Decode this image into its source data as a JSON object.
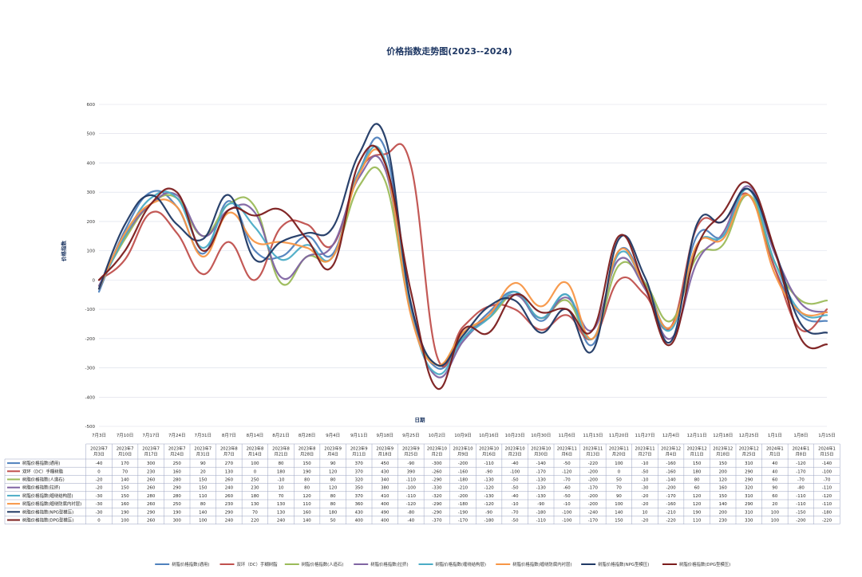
{
  "chart_data": {
    "type": "line",
    "title": "价格指数走势图(2023--2024)",
    "xlabel": "日期",
    "ylabel": "价格指数",
    "ylim": [
      -500,
      600
    ],
    "yticks": [
      -500,
      -400,
      -300,
      -200,
      -100,
      0,
      100,
      200,
      300,
      400,
      500,
      600
    ],
    "grid": true,
    "legend_position": "bottom",
    "x_tick_labels": [
      "7月3日",
      "7月10日",
      "7月17日",
      "7月24日",
      "7月31日",
      "8月7日",
      "8月14日",
      "8月21日",
      "8月28日",
      "9月4日",
      "9月11日",
      "9月18日",
      "9月25日",
      "10月2日",
      "10月9日",
      "10月16日",
      "10月23日",
      "10月30日",
      "11月6日",
      "11月13日",
      "11月20日",
      "11月27日",
      "12月4日",
      "12月11日",
      "12月18日",
      "12月25日",
      "1月1日",
      "1月8日",
      "1月15日"
    ],
    "categories": [
      "2023年7月3日",
      "2023年7月10日",
      "2023年7月17日",
      "2023年7月24日",
      "2023年7月31日",
      "2023年8月7日",
      "2023年8月14日",
      "2023年8月21日",
      "2023年8月28日",
      "2023年9月4日",
      "2023年9月11日",
      "2023年9月18日",
      "2023年9月25日",
      "2023年10月2日",
      "2023年10月9日",
      "2023年10月16日",
      "2023年10月23日",
      "2023年10月30日",
      "2023年11月6日",
      "2023年11月13日",
      "2023年11月20日",
      "2023年11月27日",
      "2023年12月4日",
      "2023年12月11日",
      "2023年12月18日",
      "2023年12月25日",
      "2024年1月1日",
      "2024年1月8日",
      "2024年1月15日"
    ],
    "series": [
      {
        "name": "树脂价格指数(通用)",
        "color": "#4f81bd",
        "values": [
          -40,
          170,
          300,
          250,
          90,
          270,
          100,
          80,
          150,
          90,
          370,
          450,
          -90,
          -300,
          -200,
          -110,
          -40,
          -140,
          -50,
          -220,
          100,
          -10,
          -160,
          150,
          150,
          310,
          40,
          -120,
          -140
        ]
      },
      {
        "name": "双环（DC）手糊树脂",
        "color": "#c0504d",
        "values": [
          0,
          70,
          230,
          160,
          20,
          130,
          0,
          180,
          190,
          120,
          370,
          430,
          390,
          -260,
          -160,
          -90,
          -100,
          -170,
          -120,
          -200,
          0,
          -50,
          -160,
          180,
          200,
          290,
          40,
          -170,
          -100
        ]
      },
      {
        "name": "树脂价格指数(人造石)",
        "color": "#9bbb59",
        "values": [
          -20,
          140,
          260,
          280,
          150,
          260,
          250,
          -10,
          80,
          80,
          320,
          340,
          -110,
          -290,
          -180,
          -130,
          -50,
          -130,
          -70,
          -200,
          50,
          -10,
          -140,
          80,
          120,
          290,
          60,
          -70,
          -70
        ]
      },
      {
        "name": "树脂价格指数(拉挤)",
        "color": "#8064a2",
        "values": [
          -20,
          150,
          260,
          290,
          150,
          240,
          230,
          10,
          80,
          120,
          350,
          380,
          -100,
          -330,
          -210,
          -120,
          -50,
          -130,
          -60,
          -170,
          70,
          -30,
          -200,
          60,
          160,
          320,
          90,
          -80,
          -110
        ]
      },
      {
        "name": "树脂价格指数(缠绕结构层)",
        "color": "#4bacc6",
        "values": [
          -30,
          150,
          280,
          280,
          110,
          260,
          180,
          70,
          120,
          80,
          370,
          410,
          -110,
          -320,
          -200,
          -130,
          -40,
          -130,
          -50,
          -200,
          90,
          -20,
          -170,
          120,
          150,
          310,
          60,
          -110,
          -120
        ]
      },
      {
        "name": "树脂价格指数(缠绕防腐内衬层)",
        "color": "#f79646",
        "values": [
          -30,
          160,
          260,
          250,
          80,
          230,
          130,
          130,
          110,
          80,
          360,
          400,
          -120,
          -290,
          -180,
          -120,
          -10,
          -90,
          -10,
          -200,
          100,
          -20,
          -160,
          120,
          140,
          290,
          20,
          -110,
          -110
        ]
      },
      {
        "name": "树脂价格指数(NPG型模压)",
        "color": "#1f3864",
        "values": [
          -30,
          190,
          290,
          190,
          140,
          290,
          70,
          130,
          160,
          180,
          430,
          490,
          -80,
          -290,
          -190,
          -90,
          -70,
          -180,
          -100,
          -240,
          140,
          10,
          -210,
          190,
          200,
          310,
          100,
          -150,
          -180
        ]
      },
      {
        "name": "树脂价格指数(DPG型模压)",
        "color": "#7b1c1c",
        "values": [
          0,
          100,
          260,
          300,
          100,
          240,
          220,
          240,
          140,
          50,
          400,
          400,
          -40,
          -370,
          -170,
          -180,
          -50,
          -110,
          -100,
          -170,
          150,
          -20,
          -220,
          110,
          230,
          330,
          100,
          -200,
          -220
        ]
      }
    ]
  }
}
